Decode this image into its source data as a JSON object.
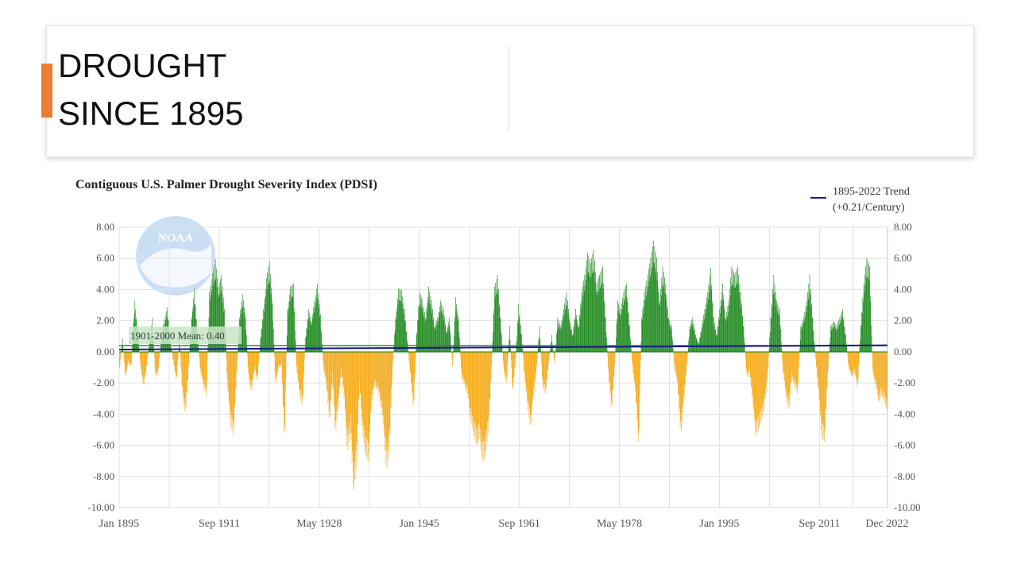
{
  "slide": {
    "title_line1": "DROUGHT",
    "title_line2": "SINCE 1895"
  },
  "colors": {
    "accent": "#ed7d31",
    "positive": "#1f8a1f",
    "negative": "#f5aa18",
    "trend": "#1a1a8c",
    "mean": "#4a7a4a"
  },
  "chart_data": {
    "type": "bar",
    "title": "Contiguous U.S. Palmer Drought Severity Index (PDSI)",
    "xlabel": "",
    "ylabel": "",
    "ylim": [
      -10,
      8
    ],
    "yticks": [
      8,
      6,
      4,
      2,
      0,
      -2,
      -4,
      -6,
      -8,
      -10
    ],
    "ytick_labels": [
      "8.00",
      "6.00",
      "4.00",
      "2.00",
      "0.00",
      "-2.00",
      "-4.00",
      "-6.00",
      "-8.00",
      "-10.00"
    ],
    "x_range": [
      1895.0,
      2023.0
    ],
    "xticks": [
      {
        "label": "Jan 1895",
        "x": 1895.0
      },
      {
        "label": "Sep 1911",
        "x": 1911.67
      },
      {
        "label": "May 1928",
        "x": 1928.33
      },
      {
        "label": "Jan 1945",
        "x": 1945.0
      },
      {
        "label": "Sep 1961",
        "x": 1961.67
      },
      {
        "label": "May 1978",
        "x": 1978.33
      },
      {
        "label": "Jan 1995",
        "x": 1995.0
      },
      {
        "label": "Sep 2011",
        "x": 2011.67
      },
      {
        "label": "Dec 2022",
        "x": 2022.92
      }
    ],
    "legend": {
      "label": "1895-2022 Trend",
      "sublabel": "(+0.21/Century)",
      "position": "top-right"
    },
    "mean_label": "1901-2000 Mean: 0.40",
    "mean_value": 0.4,
    "trend": {
      "start": 0.15,
      "end": 0.42
    },
    "series_points": [
      [
        1895.0,
        -1.2
      ],
      [
        1895.5,
        0.8
      ],
      [
        1896.0,
        -1.6
      ],
      [
        1896.5,
        -0.6
      ],
      [
        1897.0,
        -0.9
      ],
      [
        1897.5,
        3.0
      ],
      [
        1898.0,
        1.5
      ],
      [
        1898.5,
        -0.8
      ],
      [
        1899.0,
        -2.1
      ],
      [
        1899.5,
        -1.0
      ],
      [
        1900.0,
        0.6
      ],
      [
        1900.5,
        2.0
      ],
      [
        1901.0,
        -1.5
      ],
      [
        1901.5,
        -1.2
      ],
      [
        1902.0,
        1.0
      ],
      [
        1902.5,
        1.9
      ],
      [
        1903.0,
        2.6
      ],
      [
        1903.5,
        0.5
      ],
      [
        1904.0,
        -0.6
      ],
      [
        1904.5,
        -1.8
      ],
      [
        1905.0,
        0.8
      ],
      [
        1905.5,
        -2.5
      ],
      [
        1906.0,
        -3.7
      ],
      [
        1906.5,
        -1.2
      ],
      [
        1907.0,
        2.0
      ],
      [
        1907.5,
        3.7
      ],
      [
        1908.0,
        1.0
      ],
      [
        1908.5,
        -1.2
      ],
      [
        1909.0,
        -2.0
      ],
      [
        1909.5,
        -2.7
      ],
      [
        1910.0,
        3.5
      ],
      [
        1910.5,
        4.6
      ],
      [
        1911.0,
        5.4
      ],
      [
        1911.5,
        3.8
      ],
      [
        1912.0,
        4.5
      ],
      [
        1912.5,
        2.5
      ],
      [
        1913.0,
        -2.0
      ],
      [
        1913.5,
        -4.2
      ],
      [
        1914.0,
        -5.0
      ],
      [
        1914.5,
        -1.5
      ],
      [
        1915.0,
        2.0
      ],
      [
        1915.5,
        3.4
      ],
      [
        1916.0,
        2.2
      ],
      [
        1916.5,
        -1.5
      ],
      [
        1917.0,
        -2.4
      ],
      [
        1917.5,
        -1.0
      ],
      [
        1918.0,
        -1.8
      ],
      [
        1918.5,
        0.8
      ],
      [
        1919.0,
        2.5
      ],
      [
        1919.5,
        4.3
      ],
      [
        1920.0,
        5.3
      ],
      [
        1920.5,
        3.0
      ],
      [
        1921.0,
        -2.0
      ],
      [
        1921.5,
        -1.0
      ],
      [
        1922.0,
        -0.8
      ],
      [
        1922.5,
        -5.5
      ],
      [
        1923.0,
        2.5
      ],
      [
        1923.5,
        3.8
      ],
      [
        1924.0,
        4.0
      ],
      [
        1924.5,
        -1.0
      ],
      [
        1925.0,
        -2.5
      ],
      [
        1925.5,
        -3.2
      ],
      [
        1926.0,
        0.8
      ],
      [
        1926.5,
        2.5
      ],
      [
        1927.0,
        1.8
      ],
      [
        1927.5,
        3.0
      ],
      [
        1928.0,
        4.0
      ],
      [
        1928.5,
        2.2
      ],
      [
        1929.0,
        -1.0
      ],
      [
        1929.5,
        -2.0
      ],
      [
        1930.0,
        -4.2
      ],
      [
        1930.5,
        -1.5
      ],
      [
        1931.0,
        -4.9
      ],
      [
        1931.5,
        -3.0
      ],
      [
        1932.0,
        -1.2
      ],
      [
        1932.5,
        -3.0
      ],
      [
        1933.0,
        -6.0
      ],
      [
        1933.5,
        -4.5
      ],
      [
        1934.0,
        -8.4
      ],
      [
        1934.5,
        -6.5
      ],
      [
        1935.0,
        -2.0
      ],
      [
        1935.5,
        -4.8
      ],
      [
        1936.0,
        -6.0
      ],
      [
        1936.5,
        -6.5
      ],
      [
        1937.0,
        -3.0
      ],
      [
        1937.5,
        -2.0
      ],
      [
        1938.0,
        -2.2
      ],
      [
        1938.5,
        -3.0
      ],
      [
        1939.0,
        -4.5
      ],
      [
        1939.5,
        -7.0
      ],
      [
        1940.0,
        -5.5
      ],
      [
        1940.5,
        -1.0
      ],
      [
        1941.0,
        2.0
      ],
      [
        1941.5,
        3.7
      ],
      [
        1942.0,
        3.6
      ],
      [
        1942.5,
        2.5
      ],
      [
        1943.0,
        0.5
      ],
      [
        1943.5,
        -1.5
      ],
      [
        1944.0,
        -3.5
      ],
      [
        1944.5,
        1.0
      ],
      [
        1945.0,
        3.5
      ],
      [
        1945.5,
        3.0
      ],
      [
        1946.0,
        2.0
      ],
      [
        1946.5,
        3.8
      ],
      [
        1947.0,
        3.0
      ],
      [
        1947.5,
        1.5
      ],
      [
        1948.0,
        2.0
      ],
      [
        1948.5,
        3.0
      ],
      [
        1949.0,
        2.5
      ],
      [
        1949.5,
        1.2
      ],
      [
        1950.0,
        2.0
      ],
      [
        1950.5,
        -1.0
      ],
      [
        1951.0,
        3.2
      ],
      [
        1951.5,
        2.0
      ],
      [
        1952.0,
        -1.5
      ],
      [
        1952.5,
        -2.0
      ],
      [
        1953.0,
        -2.5
      ],
      [
        1953.5,
        -4.0
      ],
      [
        1954.0,
        -4.8
      ],
      [
        1954.5,
        -5.5
      ],
      [
        1955.0,
        -5.0
      ],
      [
        1955.5,
        -6.5
      ],
      [
        1956.0,
        -6.0
      ],
      [
        1956.5,
        -4.5
      ],
      [
        1957.0,
        -1.0
      ],
      [
        1957.5,
        3.8
      ],
      [
        1958.0,
        4.5
      ],
      [
        1958.5,
        2.0
      ],
      [
        1959.0,
        -1.0
      ],
      [
        1959.5,
        -2.0
      ],
      [
        1960.0,
        1.5
      ],
      [
        1960.5,
        -2.5
      ],
      [
        1961.0,
        -0.5
      ],
      [
        1961.5,
        2.8
      ],
      [
        1962.0,
        1.0
      ],
      [
        1962.5,
        -1.5
      ],
      [
        1963.0,
        -3.2
      ],
      [
        1963.5,
        -4.5
      ],
      [
        1964.0,
        -2.5
      ],
      [
        1964.5,
        -1.0
      ],
      [
        1965.0,
        1.5
      ],
      [
        1965.5,
        -2.0
      ],
      [
        1966.0,
        -2.5
      ],
      [
        1967.0,
        1.0
      ],
      [
        1967.5,
        -0.8
      ],
      [
        1968.0,
        2.0
      ],
      [
        1968.5,
        1.5
      ],
      [
        1969.0,
        2.5
      ],
      [
        1969.5,
        3.5
      ],
      [
        1970.0,
        2.0
      ],
      [
        1970.5,
        1.0
      ],
      [
        1971.0,
        2.5
      ],
      [
        1971.5,
        1.5
      ],
      [
        1972.0,
        3.5
      ],
      [
        1972.5,
        4.5
      ],
      [
        1973.0,
        5.8
      ],
      [
        1973.5,
        5.2
      ],
      [
        1974.0,
        6.0
      ],
      [
        1974.5,
        4.0
      ],
      [
        1975.0,
        4.5
      ],
      [
        1975.5,
        5.0
      ],
      [
        1976.0,
        2.0
      ],
      [
        1976.5,
        -1.5
      ],
      [
        1977.0,
        -3.5
      ],
      [
        1977.5,
        -1.0
      ],
      [
        1978.0,
        3.0
      ],
      [
        1978.5,
        2.5
      ],
      [
        1979.0,
        3.5
      ],
      [
        1979.5,
        4.0
      ],
      [
        1980.0,
        1.5
      ],
      [
        1980.5,
        -1.0
      ],
      [
        1981.0,
        -2.5
      ],
      [
        1981.5,
        -5.8
      ],
      [
        1982.0,
        2.0
      ],
      [
        1982.5,
        3.5
      ],
      [
        1983.0,
        4.5
      ],
      [
        1983.5,
        5.5
      ],
      [
        1984.0,
        6.5
      ],
      [
        1984.5,
        5.5
      ],
      [
        1985.0,
        3.0
      ],
      [
        1985.5,
        5.0
      ],
      [
        1986.0,
        4.0
      ],
      [
        1986.5,
        2.0
      ],
      [
        1987.0,
        1.5
      ],
      [
        1987.5,
        -1.0
      ],
      [
        1988.0,
        -2.0
      ],
      [
        1988.5,
        -5.0
      ],
      [
        1989.0,
        -3.0
      ],
      [
        1989.5,
        -1.0
      ],
      [
        1990.0,
        1.5
      ],
      [
        1990.5,
        2.0
      ],
      [
        1991.0,
        1.0
      ],
      [
        1991.5,
        0.5
      ],
      [
        1992.0,
        1.5
      ],
      [
        1992.5,
        2.5
      ],
      [
        1993.0,
        3.5
      ],
      [
        1993.5,
        4.9
      ],
      [
        1994.0,
        2.0
      ],
      [
        1994.5,
        1.0
      ],
      [
        1995.0,
        2.5
      ],
      [
        1995.5,
        4.0
      ],
      [
        1996.0,
        2.0
      ],
      [
        1996.5,
        3.0
      ],
      [
        1997.0,
        5.0
      ],
      [
        1997.5,
        4.5
      ],
      [
        1998.0,
        5.0
      ],
      [
        1998.5,
        3.5
      ],
      [
        1999.0,
        1.5
      ],
      [
        1999.5,
        -1.5
      ],
      [
        2000.0,
        -1.2
      ],
      [
        2000.5,
        -3.0
      ],
      [
        2001.0,
        -5.0
      ],
      [
        2001.5,
        -4.5
      ],
      [
        2002.0,
        -4.0
      ],
      [
        2002.5,
        -3.0
      ],
      [
        2003.0,
        -1.5
      ],
      [
        2003.5,
        2.0
      ],
      [
        2004.0,
        4.5
      ],
      [
        2004.5,
        3.0
      ],
      [
        2005.0,
        2.5
      ],
      [
        2005.5,
        -1.0
      ],
      [
        2006.0,
        -2.5
      ],
      [
        2006.5,
        -3.5
      ],
      [
        2007.0,
        -1.5
      ],
      [
        2007.5,
        -2.0
      ],
      [
        2008.0,
        -2.5
      ],
      [
        2008.5,
        1.5
      ],
      [
        2009.0,
        2.0
      ],
      [
        2009.5,
        3.0
      ],
      [
        2010.0,
        4.5
      ],
      [
        2010.5,
        2.0
      ],
      [
        2011.0,
        -0.5
      ],
      [
        2011.5,
        -2.5
      ],
      [
        2012.0,
        -5.0
      ],
      [
        2012.5,
        -5.3
      ],
      [
        2013.0,
        -1.5
      ],
      [
        2013.5,
        1.5
      ],
      [
        2014.0,
        1.8
      ],
      [
        2014.5,
        1.5
      ],
      [
        2015.0,
        2.0
      ],
      [
        2015.5,
        2.5
      ],
      [
        2016.0,
        1.0
      ],
      [
        2016.5,
        -1.0
      ],
      [
        2017.0,
        -1.5
      ],
      [
        2017.5,
        -1.2
      ],
      [
        2018.0,
        -2.2
      ],
      [
        2018.5,
        1.5
      ],
      [
        2019.0,
        4.0
      ],
      [
        2019.5,
        5.5
      ],
      [
        2020.0,
        5.0
      ],
      [
        2020.5,
        -1.2
      ],
      [
        2021.0,
        -2.0
      ],
      [
        2021.5,
        -3.0
      ],
      [
        2022.0,
        -2.5
      ],
      [
        2022.5,
        -3.0
      ],
      [
        2022.92,
        -3.4
      ]
    ]
  }
}
